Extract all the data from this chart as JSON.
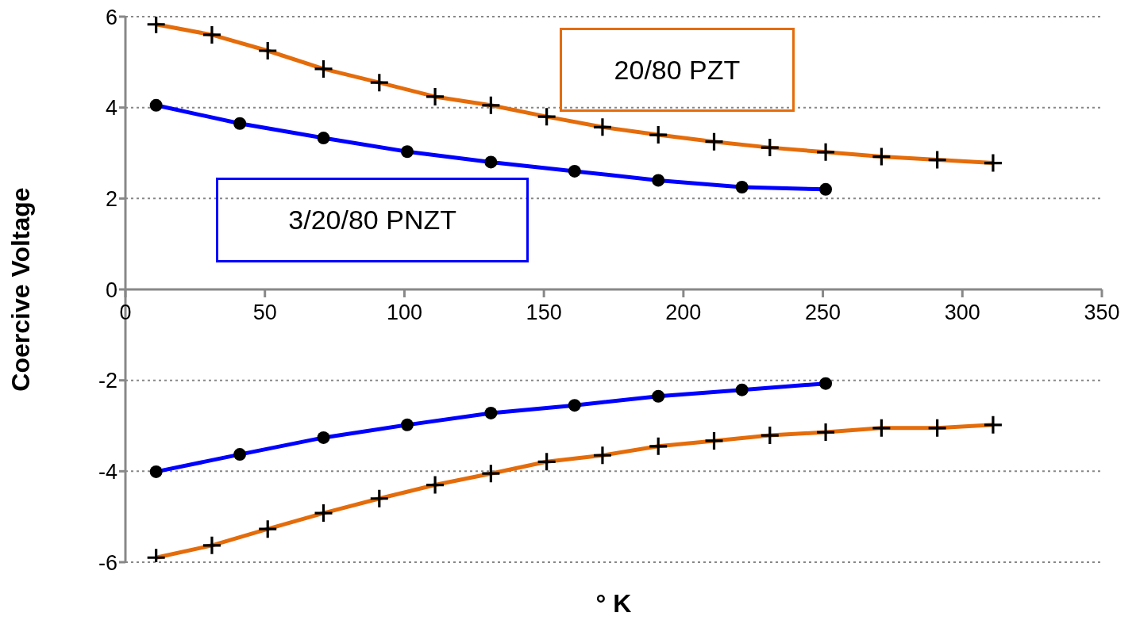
{
  "chart_data": {
    "type": "line",
    "xlabel": "° K",
    "ylabel": "Coercive Voltage",
    "xlim": [
      0,
      350
    ],
    "xticks": [
      0,
      50,
      100,
      150,
      200,
      250,
      300,
      350
    ],
    "ylim": [
      -6,
      6
    ],
    "yticks": [
      -6,
      -4,
      -2,
      0,
      2,
      4,
      6
    ],
    "grid": "y",
    "line_style": "solid",
    "series": [
      {
        "name": "20/80 PZT",
        "color": "#e46c0a",
        "marker": "cross",
        "x": [
          11,
          31,
          51,
          71,
          91,
          111,
          131,
          151,
          171,
          191,
          211,
          231,
          251,
          271,
          291,
          311
        ],
        "values": [
          5.83,
          5.6,
          5.25,
          4.85,
          4.55,
          4.24,
          4.05,
          3.8,
          3.57,
          3.4,
          3.25,
          3.12,
          3.02,
          2.92,
          2.85,
          2.78
        ]
      },
      {
        "name": "3/20/80 PNZT",
        "color": "#0000ff",
        "marker": "circle",
        "x": [
          11,
          41,
          71,
          101,
          131,
          161,
          191,
          221,
          251
        ],
        "values": [
          4.05,
          3.65,
          3.33,
          3.03,
          2.8,
          2.6,
          2.4,
          2.25,
          2.2
        ]
      },
      {
        "color": "#0000ff",
        "marker": "circle",
        "x": [
          11,
          41,
          71,
          101,
          131,
          161,
          191,
          221,
          251
        ],
        "values": [
          -4.01,
          -3.63,
          -3.26,
          -2.98,
          -2.72,
          -2.55,
          -2.35,
          -2.21,
          -2.07
        ]
      },
      {
        "color": "#e46c0a",
        "marker": "cross",
        "x": [
          11,
          31,
          51,
          71,
          91,
          111,
          131,
          151,
          171,
          191,
          211,
          231,
          251,
          271,
          291,
          311
        ],
        "values": [
          -5.9,
          -5.63,
          -5.27,
          -4.92,
          -4.6,
          -4.3,
          -4.05,
          -3.79,
          -3.65,
          -3.45,
          -3.33,
          -3.21,
          -3.14,
          -3.05,
          -3.05,
          -2.98
        ]
      }
    ]
  }
}
